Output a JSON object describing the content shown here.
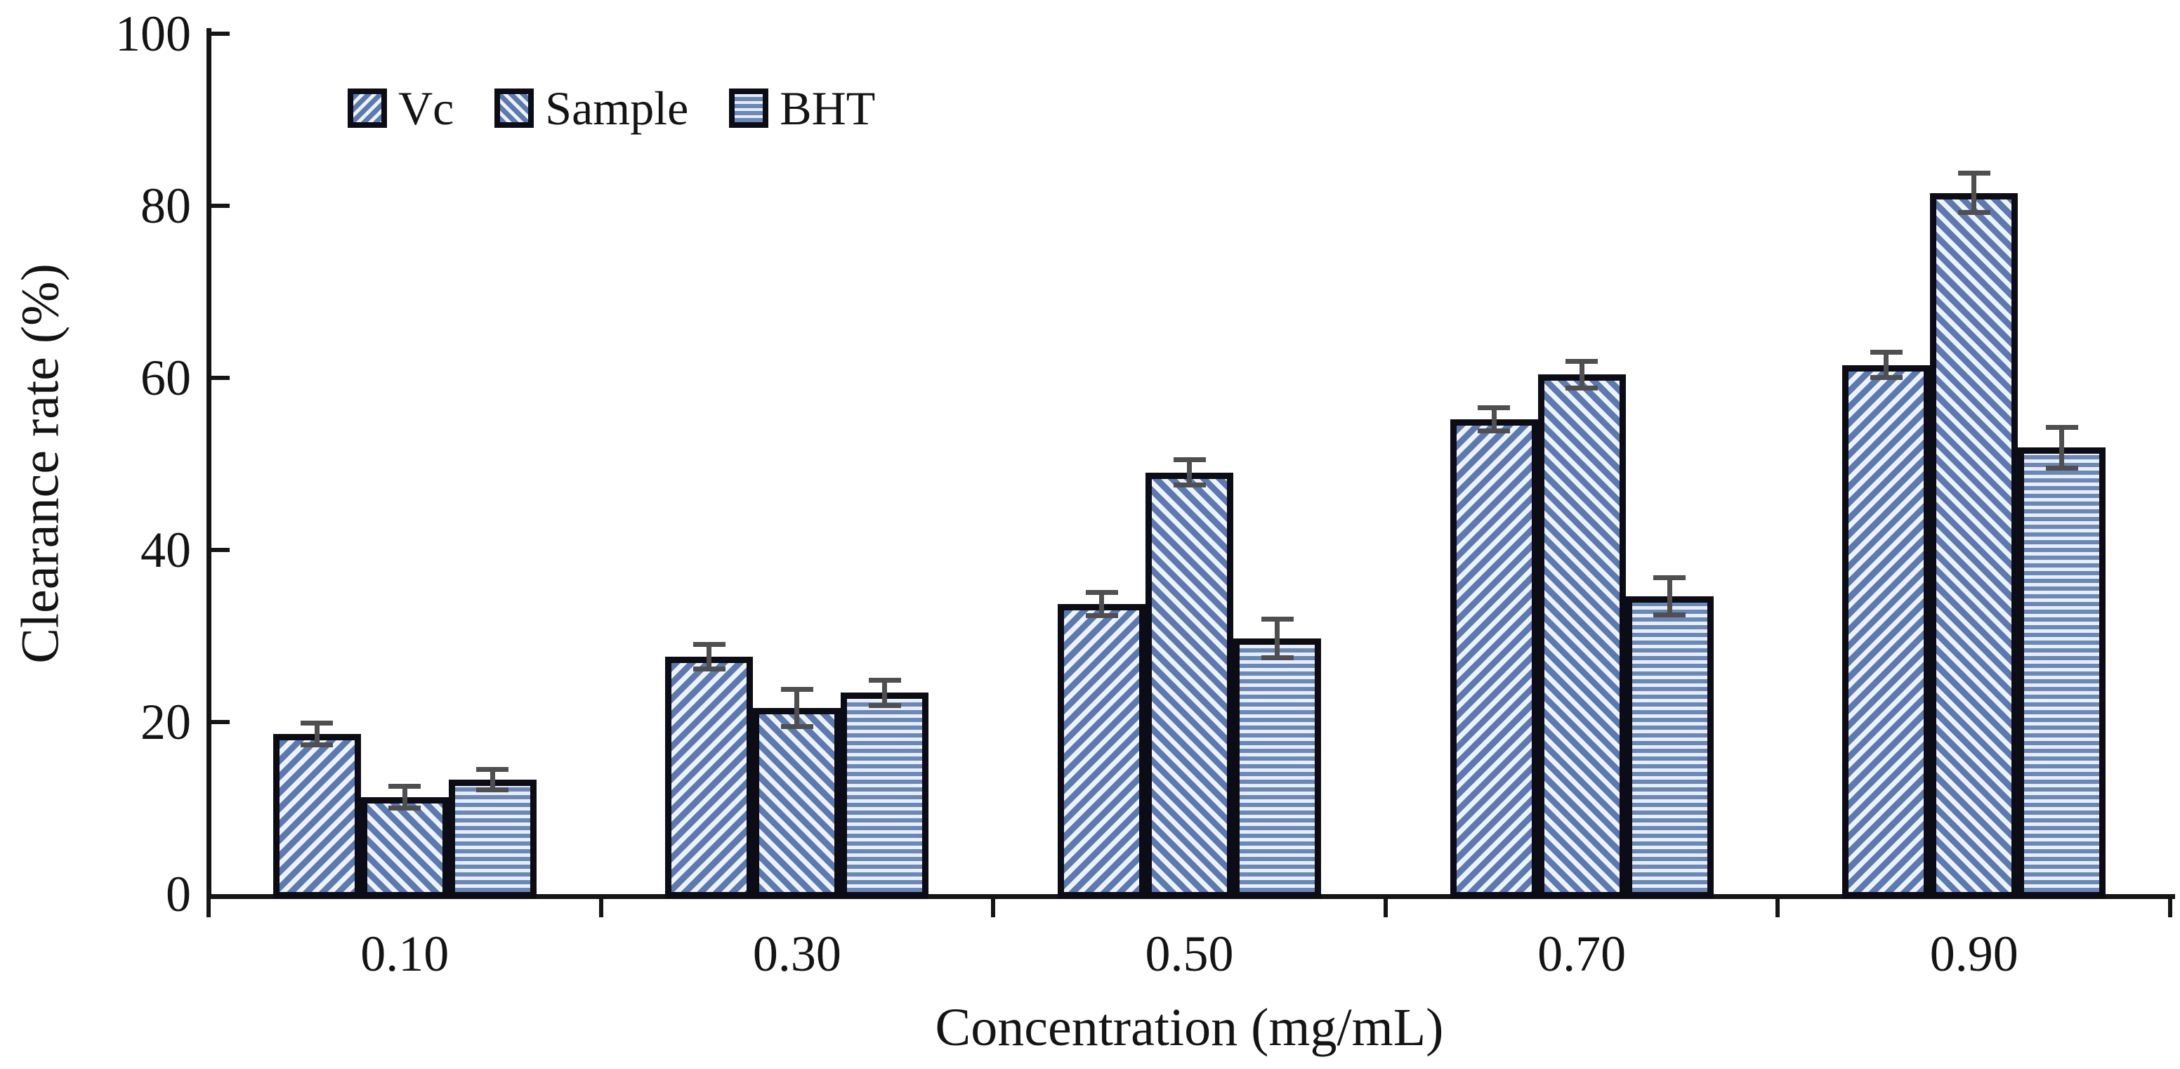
{
  "figure_title": "",
  "colors": {
    "hatch_blue": "#5b7ab2",
    "hatch_blue_horizontal": "#6b87b8",
    "hatch_light": "#eef3fb",
    "bar_border": "#0c0c14",
    "error_bar": "#4f4f4f",
    "axis": "#151515",
    "text": "#141414"
  },
  "legend": {
    "items": [
      {
        "label": "Vc",
        "hatch": "diagonal-forward-icon"
      },
      {
        "label": "Sample",
        "hatch": "diagonal-back-icon"
      },
      {
        "label": "BHT",
        "hatch": "horizontal-lines-icon"
      }
    ]
  },
  "chart_data": {
    "type": "bar",
    "title": "",
    "xlabel": "Concentration (mg/mL)",
    "ylabel": "Clearance rate (%)",
    "categories": [
      "0.10",
      "0.30",
      "0.50",
      "0.70",
      "0.90"
    ],
    "ylim": [
      0,
      100
    ],
    "yticks": [
      0,
      20,
      40,
      60,
      80,
      100
    ],
    "grid": false,
    "legend_position": "top-left-inside",
    "bar_style": "clustered, hatched fill, black outline, gray error bars with caps",
    "series": [
      {
        "name": "Vc",
        "hatch": "/",
        "values": [
          18.6,
          27.6,
          33.7,
          55.2,
          61.5
        ],
        "errors": [
          1.3,
          1.5,
          1.4,
          1.4,
          1.5
        ]
      },
      {
        "name": "Sample",
        "hatch": "\\",
        "values": [
          11.3,
          21.6,
          49.0,
          60.4,
          81.5
        ],
        "errors": [
          1.3,
          2.2,
          1.5,
          1.6,
          2.3
        ]
      },
      {
        "name": "BHT",
        "hatch": "-",
        "values": [
          13.3,
          23.4,
          29.7,
          34.6,
          51.9
        ],
        "errors": [
          1.2,
          1.5,
          2.3,
          2.2,
          2.4
        ]
      }
    ]
  }
}
